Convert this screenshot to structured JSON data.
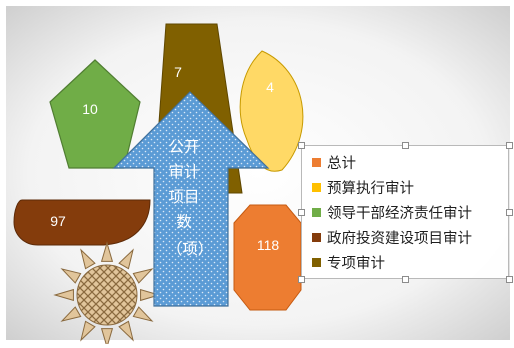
{
  "chart_data": {
    "type": "pie",
    "categories": [
      "总计",
      "预算执行审计",
      "领导干部经济责任审计",
      "政府投资建设项目审计",
      "专项审计"
    ],
    "values": [
      118,
      4,
      10,
      97,
      7
    ],
    "colors": [
      "#ed7d31",
      "#ffc000",
      "#70ad47",
      "#843c0c",
      "#806000"
    ],
    "title_lines": [
      "公开",
      "审计",
      "项目",
      "数",
      "（项）"
    ],
    "legend_placement": "right"
  }
}
